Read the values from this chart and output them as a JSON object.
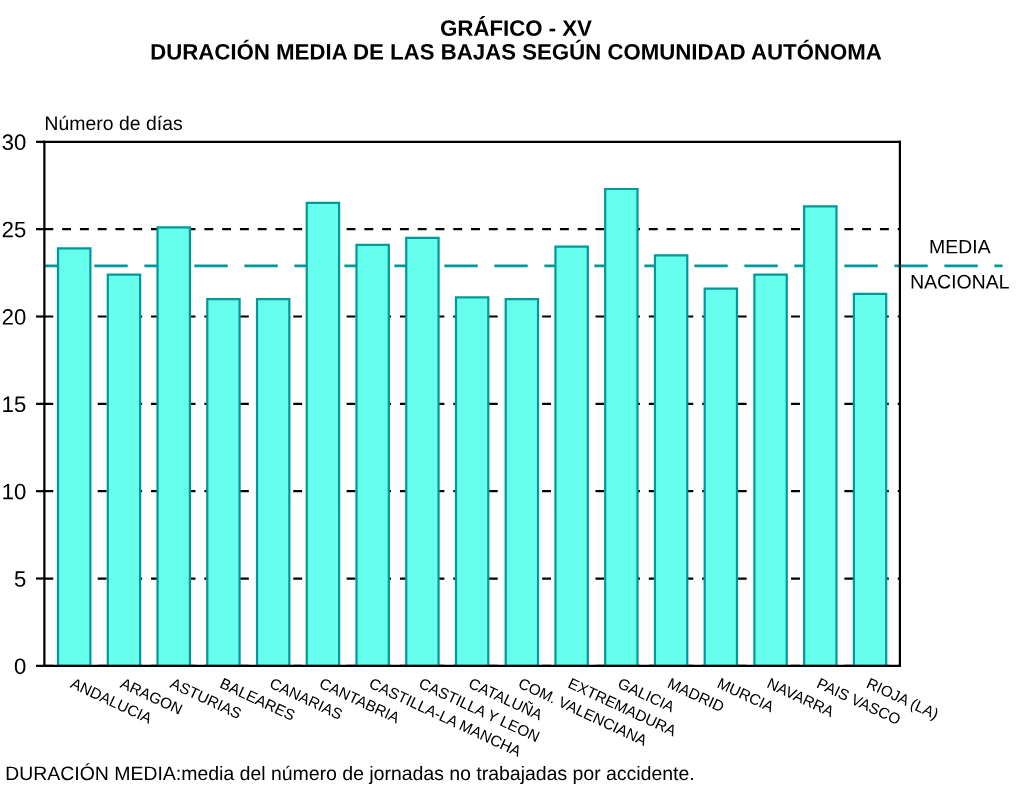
{
  "chart_data": {
    "type": "bar",
    "title": "GRÁFICO - XV",
    "subtitle": "DURACIÓN MEDIA DE LAS BAJAS SEGÚN COMUNIDAD AUTÓNOMA",
    "ylabel": "Número de días",
    "categories": [
      "ANDALUCIA",
      "ARAGON",
      "ASTURIAS",
      "BALEARES",
      "CANARIAS",
      "CANTABRIA",
      "CASTILLA-LA MANCHA",
      "CASTILLA Y LEON",
      "CATALUÑA",
      "COM. VALENCIANA",
      "EXTREMADURA",
      "GALICIA",
      "MADRID",
      "MURCIA",
      "NAVARRA",
      "PAIS VASCO",
      "RIOJA (LA)"
    ],
    "values": [
      23.9,
      22.4,
      25.1,
      21.0,
      21.0,
      26.5,
      24.1,
      24.5,
      21.1,
      21.0,
      24.0,
      27.3,
      23.5,
      21.6,
      22.4,
      26.3,
      21.3
    ],
    "color": "#66ffee",
    "ylim": [
      0,
      30
    ],
    "yticks": [
      0,
      5,
      10,
      15,
      20,
      25,
      30
    ],
    "grid": "y",
    "ref_lines": [
      {
        "axis": "y",
        "value": 22.9,
        "label": "MEDIA\nNACIONAL",
        "color": "#009999",
        "line_style": "dashed"
      }
    ],
    "annotations": [
      "DURACIÓN MEDIA:media del número de jornadas no trabajadas por accidente."
    ]
  }
}
